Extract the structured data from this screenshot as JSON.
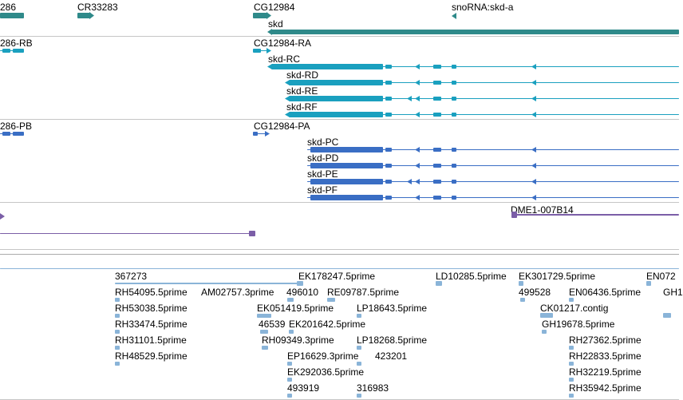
{
  "colors": {
    "gene": "#2f8a8a",
    "transcript": "#1aa0bf",
    "protein": "#3a6ec4",
    "misc": "#7b5ea7",
    "est": "#8ab4d8",
    "divider": "#c6c6c6"
  },
  "gene_track": {
    "labels": [
      "286",
      "CR33283",
      "CG12984",
      "snoRNA:skd-a",
      "skd"
    ]
  },
  "transcript_track": {
    "labels": [
      "286-RB",
      "CG12984-RA",
      "skd-RC",
      "skd-RD",
      "skd-RE",
      "skd-RF"
    ]
  },
  "protein_track": {
    "labels": [
      "286-PB",
      "CG12984-PA",
      "skd-PC",
      "skd-PD",
      "skd-PE",
      "skd-PF"
    ]
  },
  "misc_track": {
    "labels": [
      "DME1-007B14"
    ]
  },
  "est_track": {
    "labels": [
      "367273",
      "EK178247.5prime",
      "LD10285.5prime",
      "EK301729.5prime",
      "EN072",
      "RH54095.5prime",
      "AM02757.3prime",
      "496010",
      "RE09787.5prime",
      "499528",
      "EN06436.5prime",
      "GH1",
      "RH53038.5prime",
      "EK051419.5prime",
      "LP18643.5prime",
      "CK01217.contig",
      "RH33474.5prime",
      "46539",
      "EK201642.5prime",
      "GH19678.5prime",
      "RH31101.5prime",
      "RH09349.3prime",
      "LP18268.5prime",
      "RH27362.5prime",
      "RH48529.5prime",
      "EP16629.3prime",
      "423201",
      "RH22833.5prime",
      "EK292036.5prime",
      "RH32219.5prime",
      "493919",
      "316983",
      "RH35942.5prime"
    ]
  }
}
